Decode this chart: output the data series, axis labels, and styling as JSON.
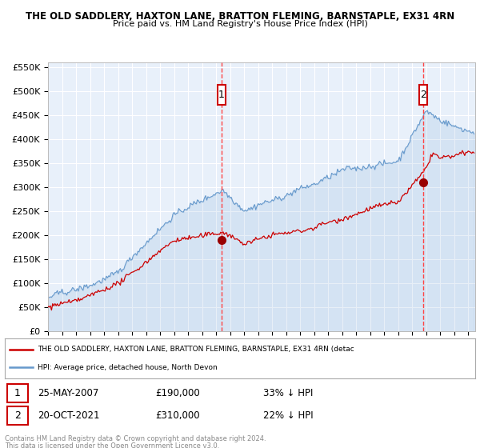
{
  "title1": "THE OLD SADDLERY, HAXTON LANE, BRATTON FLEMING, BARNSTAPLE, EX31 4RN",
  "title2": "Price paid vs. HM Land Registry's House Price Index (HPI)",
  "legend_line1": "THE OLD SADDLERY, HAXTON LANE, BRATTON FLEMING, BARNSTAPLE, EX31 4RN (detac",
  "legend_line2": "HPI: Average price, detached house, North Devon",
  "sale1_date": "25-MAY-2007",
  "sale1_price": "£190,000",
  "sale1_note": "33% ↓ HPI",
  "sale2_date": "20-OCT-2021",
  "sale2_price": "£310,000",
  "sale2_note": "22% ↓ HPI",
  "footer": "Contains HM Land Registry data © Crown copyright and database right 2024.\nThis data is licensed under the Open Government Licence v3.0.",
  "sale1_year": 2007.4,
  "sale1_value": 190000,
  "sale2_year": 2021.8,
  "sale2_value": 310000,
  "ylim_min": 0,
  "ylim_max": 560000,
  "plot_bg": "#e8f0fa",
  "grid_color": "#ffffff",
  "red_line_color": "#cc0000",
  "blue_line_color": "#6699cc",
  "sale_dot_color": "#990000",
  "dashed_line_color": "#ff4444",
  "marker_box_color": "#cc0000",
  "footer_color": "#888888"
}
